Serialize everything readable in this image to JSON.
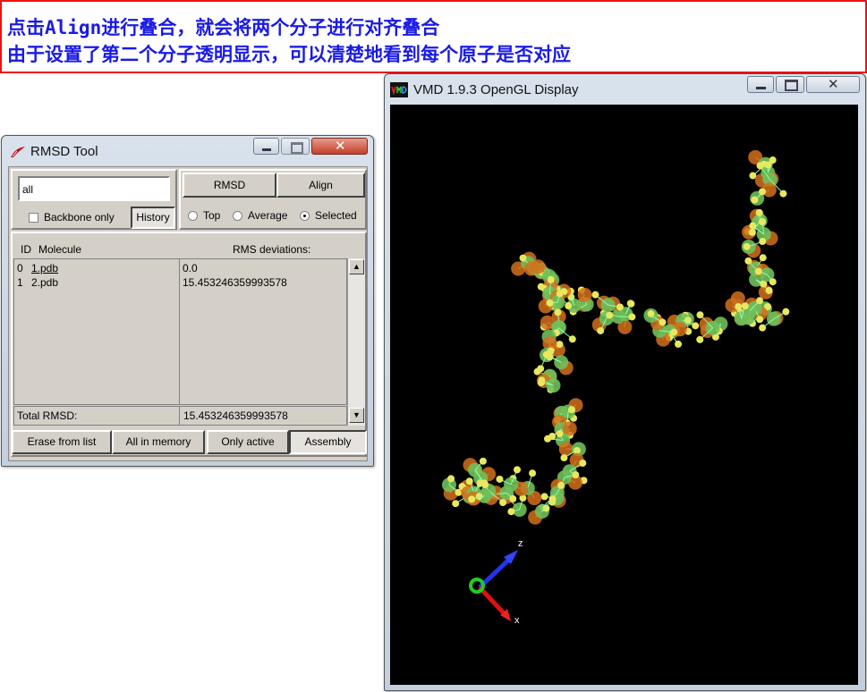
{
  "banner": {
    "line1": "点击Align进行叠合，就会将两个分子进行对齐叠合",
    "line2": "由于设置了第二个分子透明显示，可以清楚地看到每个原子是否对应"
  },
  "rmsd_window": {
    "title": "RMSD Tool",
    "selection_text": "all",
    "backbone_only_label": "Backbone only",
    "history_label": "History",
    "rmsd_button": "RMSD",
    "align_button": "Align",
    "radio_top": "Top",
    "radio_average": "Average",
    "radio_selected": "Selected",
    "selected_radio": "Selected",
    "col_id": "ID",
    "col_molecule": "Molecule",
    "col_rms": "RMS deviations:",
    "rows": [
      {
        "id": "0",
        "molecule": "1.pdb",
        "rms": "0.0"
      },
      {
        "id": "1",
        "molecule": "2.pdb",
        "rms": "15.453246359993578"
      }
    ],
    "total_label": "Total RMSD:",
    "total_value": "15.453246359993578",
    "buttons": {
      "erase": "Erase from list",
      "all_in_memory": "All in memory",
      "only_active": "Only active",
      "assembly": "Assembly"
    }
  },
  "vmd_window": {
    "title": "VMD 1.9.3 OpenGL Display",
    "axis_z": "z",
    "axis_x": "x",
    "colors": {
      "carbon": "#6fbf5a",
      "oxygen": "#d2701c",
      "hydrogen": "#e8e860",
      "background": "#000000"
    }
  }
}
